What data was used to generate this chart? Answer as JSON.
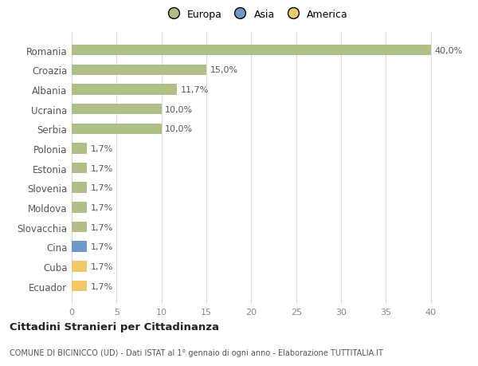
{
  "categories": [
    "Ecuador",
    "Cuba",
    "Cina",
    "Slovacchia",
    "Moldova",
    "Slovenia",
    "Estonia",
    "Polonia",
    "Serbia",
    "Ucraina",
    "Albania",
    "Croazia",
    "Romania"
  ],
  "values": [
    1.7,
    1.7,
    1.7,
    1.7,
    1.7,
    1.7,
    1.7,
    1.7,
    10.0,
    10.0,
    11.7,
    15.0,
    40.0
  ],
  "colors": [
    "#f0c96a",
    "#f0c96a",
    "#7098c8",
    "#aec087",
    "#aec087",
    "#aec087",
    "#aec087",
    "#aec087",
    "#aec087",
    "#aec087",
    "#aec087",
    "#aec087",
    "#aec087"
  ],
  "labels": [
    "1,7%",
    "1,7%",
    "1,7%",
    "1,7%",
    "1,7%",
    "1,7%",
    "1,7%",
    "1,7%",
    "10,0%",
    "10,0%",
    "11,7%",
    "15,0%",
    "40,0%"
  ],
  "legend_labels": [
    "Europa",
    "Asia",
    "America"
  ],
  "legend_colors": [
    "#aec087",
    "#7098c8",
    "#f0c96a"
  ],
  "title": "Cittadini Stranieri per Cittadinanza",
  "subtitle": "COMUNE DI BICINICCO (UD) - Dati ISTAT al 1° gennaio di ogni anno - Elaborazione TUTTITALIA.IT",
  "xlim": [
    0,
    41
  ],
  "xticks": [
    0,
    5,
    10,
    15,
    20,
    25,
    30,
    35,
    40
  ],
  "background_color": "#ffffff",
  "plot_bg_color": "#ffffff",
  "bar_height": 0.55,
  "figsize": [
    6.0,
    4.6
  ],
  "dpi": 100
}
